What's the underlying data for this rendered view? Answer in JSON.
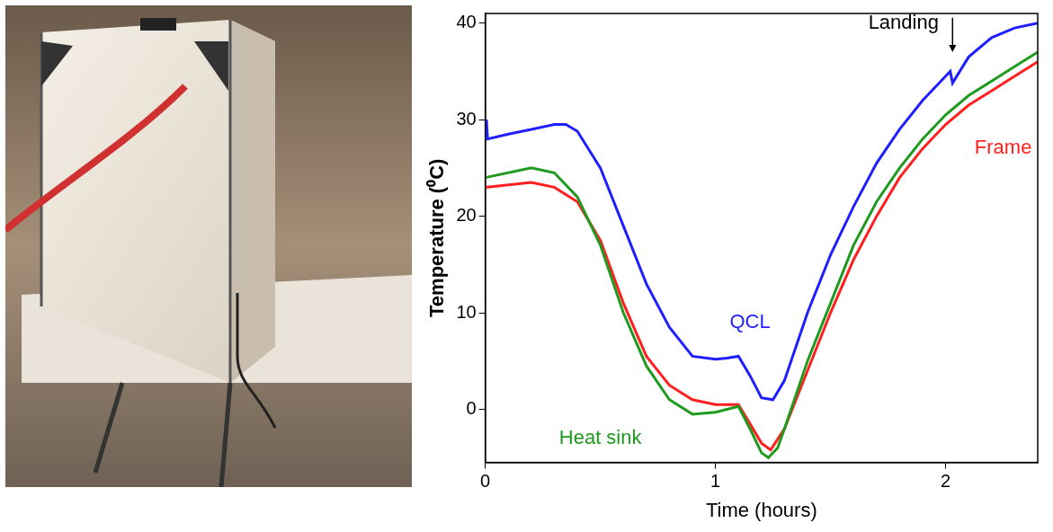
{
  "chart_data": {
    "type": "line",
    "y_label": "Temperature (⁰C)",
    "x_label": "Time (hours)",
    "xlim": [
      0,
      2.4
    ],
    "xticks": [
      0,
      1,
      2
    ],
    "ylim": [
      -5.5,
      41
    ],
    "yticks": [
      0,
      10,
      20,
      30,
      40
    ],
    "grid": false,
    "series": [
      {
        "name": "QCL",
        "color": "#1f1fff",
        "marker": "none",
        "line_style": "solid",
        "x": [
          0,
          0.005,
          0.01,
          0.1,
          0.2,
          0.3,
          0.35,
          0.4,
          0.5,
          0.6,
          0.7,
          0.8,
          0.9,
          1.0,
          1.05,
          1.1,
          1.15,
          1.2,
          1.25,
          1.3,
          1.4,
          1.5,
          1.6,
          1.7,
          1.8,
          1.9,
          2.0,
          2.02,
          2.03,
          2.1,
          2.2,
          2.3,
          2.4
        ],
        "values": [
          28,
          30,
          28,
          28.5,
          29,
          29.5,
          29.5,
          28.8,
          25,
          19,
          13,
          8.5,
          5.5,
          5.2,
          5.3,
          5.5,
          3.5,
          1.2,
          1,
          3,
          10,
          16,
          21,
          25.5,
          29,
          32,
          34.5,
          35,
          33.8,
          36.5,
          38.5,
          39.5,
          40
        ]
      },
      {
        "name": "Heat sink",
        "color": "#1e9a1e",
        "marker": "none",
        "line_style": "solid",
        "x": [
          0,
          0.2,
          0.3,
          0.4,
          0.5,
          0.6,
          0.7,
          0.8,
          0.9,
          1.0,
          1.1,
          1.15,
          1.2,
          1.23,
          1.27,
          1.3,
          1.4,
          1.5,
          1.6,
          1.7,
          1.8,
          1.9,
          2.0,
          2.1,
          2.2,
          2.3,
          2.4
        ],
        "values": [
          24,
          25,
          24.5,
          22,
          17,
          10,
          4.5,
          1,
          -0.5,
          -0.3,
          0.3,
          -2,
          -4.5,
          -5,
          -4,
          -2,
          5,
          11,
          17,
          21.5,
          25,
          28,
          30.5,
          32.5,
          34,
          35.5,
          37
        ]
      },
      {
        "name": "Frame",
        "color": "#ff1f1f",
        "marker": "none",
        "line_style": "solid",
        "x": [
          0,
          0.2,
          0.3,
          0.4,
          0.5,
          0.6,
          0.7,
          0.8,
          0.9,
          1.0,
          1.1,
          1.15,
          1.2,
          1.24,
          1.3,
          1.4,
          1.5,
          1.6,
          1.7,
          1.8,
          1.9,
          2.0,
          2.1,
          2.2,
          2.3,
          2.4
        ],
        "values": [
          23,
          23.5,
          23,
          21.5,
          17.5,
          11,
          5.5,
          2.5,
          1,
          0.5,
          0.5,
          -1.5,
          -3.5,
          -4.2,
          -2,
          4,
          10,
          15.5,
          20,
          24,
          27,
          29.5,
          31.5,
          33,
          34.5,
          36
        ]
      }
    ],
    "annotations": [
      {
        "text": "QCL",
        "x": 1.15,
        "y": 9,
        "color": "#1f1fff"
      },
      {
        "text": "Heat sink",
        "x": 0.5,
        "y": -3,
        "color": "#1e9a1e"
      },
      {
        "text": "Frame",
        "x": 2.25,
        "y": 27,
        "color": "#ff1f1f"
      },
      {
        "text": "Landing",
        "x": 1.97,
        "y": 40,
        "color": "#000000",
        "arrow_to": [
          2.03,
          37
        ]
      }
    ]
  }
}
